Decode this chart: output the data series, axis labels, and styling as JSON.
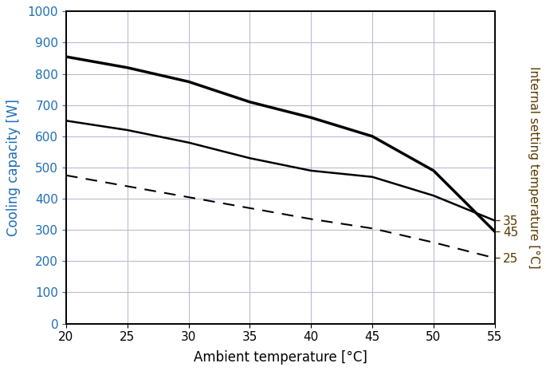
{
  "x": [
    20,
    25,
    30,
    35,
    40,
    45,
    50,
    55
  ],
  "curve_upper": [
    855,
    820,
    775,
    710,
    660,
    600,
    490,
    295
  ],
  "curve_middle": [
    650,
    620,
    580,
    530,
    490,
    470,
    410,
    330
  ],
  "curve_dashed": [
    475,
    440,
    405,
    370,
    335,
    305,
    260,
    210
  ],
  "right_y_tick_positions": [
    295,
    330,
    210
  ],
  "right_y_tick_labels": [
    "45",
    "35",
    "25"
  ],
  "xlabel": "Ambient temperature [°C]",
  "ylabel": "Cooling capacity [W]",
  "ylabel_right": "Internal setting temperature [°C]",
  "xlim": [
    20,
    55
  ],
  "ylim": [
    0,
    1000
  ],
  "xticks": [
    20,
    25,
    30,
    35,
    40,
    45,
    50,
    55
  ],
  "yticks": [
    0,
    100,
    200,
    300,
    400,
    500,
    600,
    700,
    800,
    900,
    1000
  ],
  "background_color": "#ffffff",
  "grid_color_major": "#c0b8d0",
  "grid_color_minor": "#d8d0e8",
  "line_color": "#000000",
  "ylabel_color": "#1e6eb5",
  "right_label_color": "#5a3a00",
  "right_tick_color": "#5a3a00"
}
